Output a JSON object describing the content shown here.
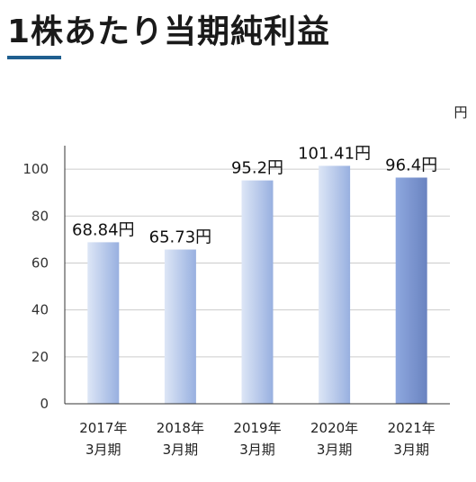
{
  "page": {
    "title": "1株あたり当期純利益"
  },
  "chart_data": {
    "type": "bar",
    "unit_label": "円",
    "categories": [
      {
        "year": "2017年",
        "period": "3月期"
      },
      {
        "year": "2018年",
        "period": "3月期"
      },
      {
        "year": "2019年",
        "period": "3月期"
      },
      {
        "year": "2020年",
        "period": "3月期"
      },
      {
        "year": "2021年",
        "period": "3月期"
      }
    ],
    "values": [
      68.84,
      65.73,
      95.2,
      101.41,
      96.4
    ],
    "value_labels": [
      "68.84円",
      "65.73円",
      "95.2円",
      "101.41円",
      "96.4円"
    ],
    "ylim": [
      0,
      110
    ],
    "yticks": [
      0,
      20,
      40,
      60,
      80,
      100
    ],
    "grid": true,
    "highlight_index": 4,
    "colors": {
      "bar_light": "#dde6f6",
      "bar_mid": "#98b0e0",
      "bar_highlight": "#7d9bd8",
      "grid": "#cccccc",
      "accent": "#1f5f8f"
    }
  }
}
